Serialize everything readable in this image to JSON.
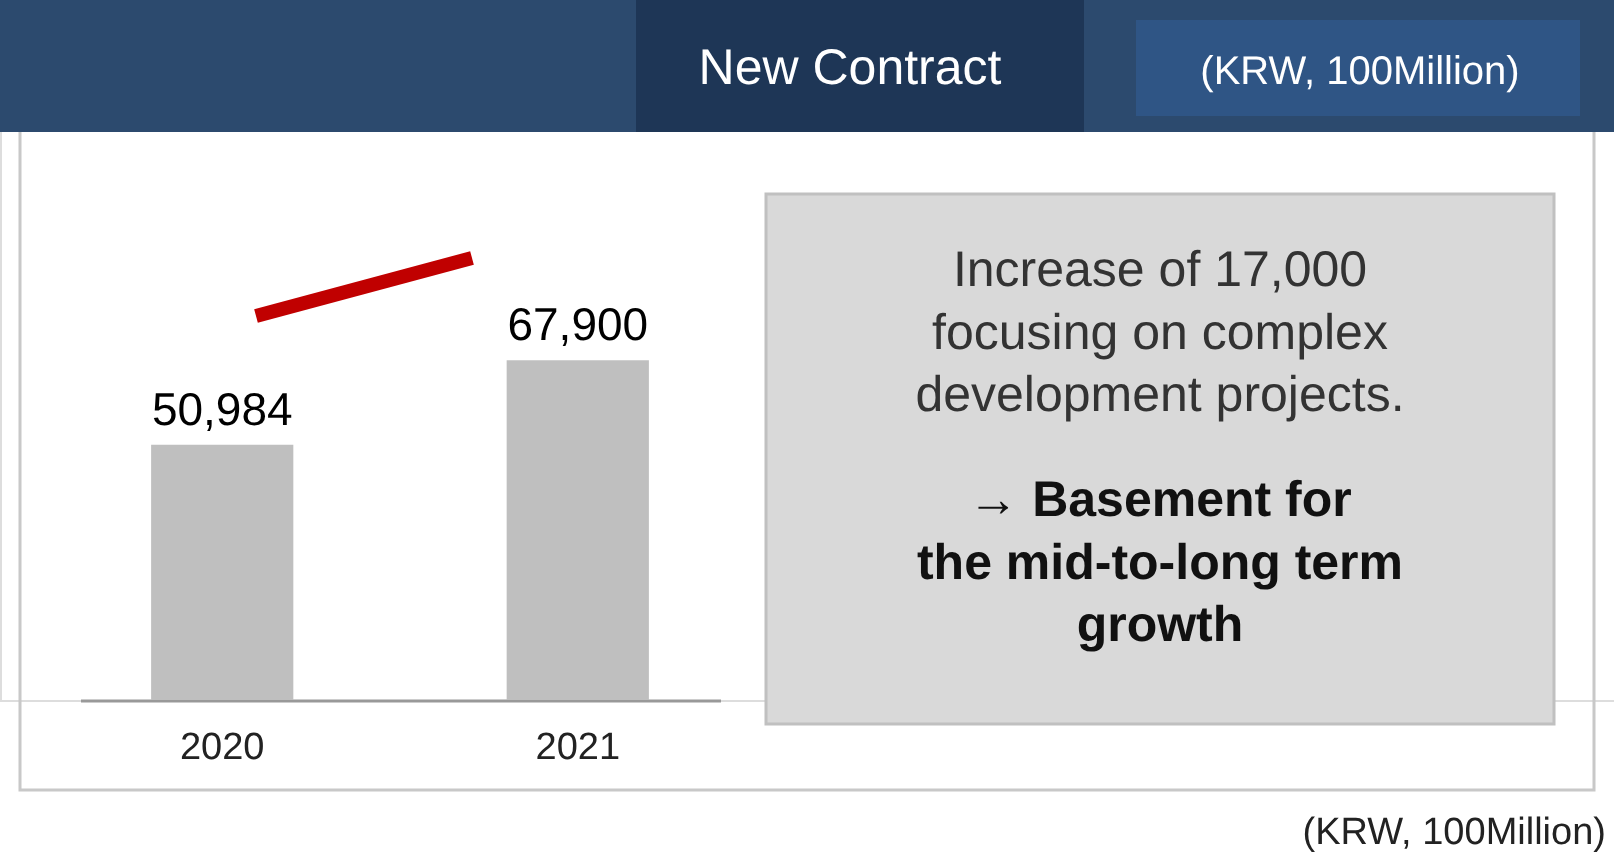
{
  "chart_data": {
    "type": "bar",
    "title": "New Contract",
    "subtitle": "(KRW, 100Million)",
    "categories": [
      "2020",
      "2021"
    ],
    "values": [
      50984,
      67900
    ],
    "value_labels": [
      "50,984",
      "67,900"
    ],
    "color": "#bfbfbf",
    "annotations": [
      "Increase of 17,000\nfocusing on complex\ndevelopment projects.",
      "→ Basement for\nthe mid-to-long term\ngrowth",
      "(KRW, 100Million)"
    ]
  }
}
